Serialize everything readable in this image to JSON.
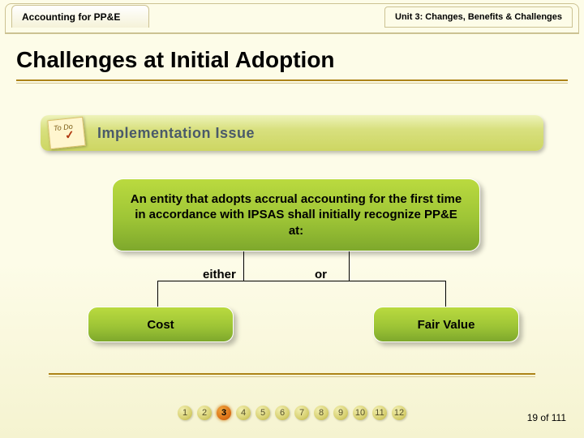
{
  "colors": {
    "page_bg_top": "#fdfce8",
    "page_bg_bottom": "#f5f3d0",
    "rule_dark": "#ad8317",
    "rule_light": "#d3c48e",
    "tab_border": "#ccc292",
    "green_grad_top": "#bada3f",
    "green_grad_mid": "#9ec536",
    "green_grad_bot": "#7ea82c",
    "banner_grad_top": "#eef3ba",
    "banner_grad_bot": "#cdd662",
    "impl_text": "#4a5a6a",
    "pager_active": "#d96c13",
    "pager_idle": "#d8d172"
  },
  "typography": {
    "heading_fontsize": 28,
    "body_bold_fontsize": 15,
    "tab_fontsize": 12,
    "subtab_fontsize": 11,
    "impl_fontsize": 18,
    "pager_fontsize": 11
  },
  "tabs": {
    "left": "Accounting for PP&E",
    "right": "Unit 3: Changes, Benefits & Challenges"
  },
  "heading": "Challenges at Initial Adoption",
  "implementation": {
    "note_label": "To Do",
    "banner_label": "Implementation Issue"
  },
  "diagram": {
    "main_text": "An entity that adopts accrual accounting for the first time in accordance with IPSAS shall initially recognize PP&E at:",
    "either_label": "either",
    "or_label": "or",
    "left_leaf": "Cost",
    "right_leaf": "Fair Value"
  },
  "pager": {
    "items": [
      "1",
      "2",
      "3",
      "4",
      "5",
      "6",
      "7",
      "8",
      "9",
      "10",
      "11",
      "12"
    ],
    "active_index": 2
  },
  "page_counter": {
    "current": "19",
    "sep": " of ",
    "total": "111"
  }
}
